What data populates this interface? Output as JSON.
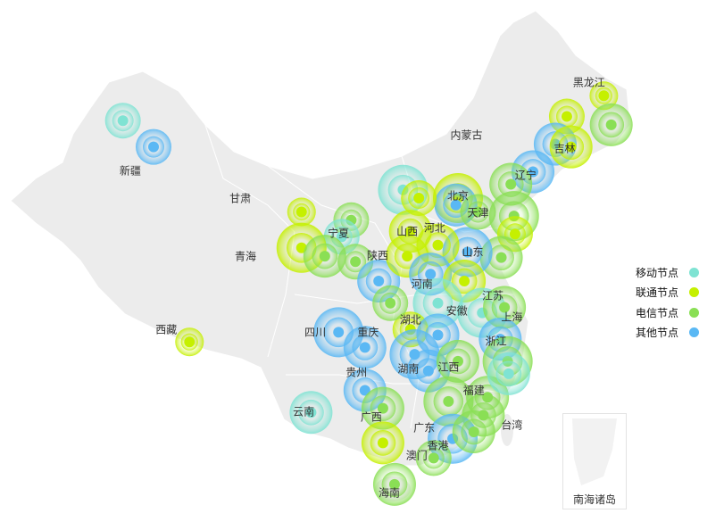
{
  "legend": [
    {
      "label": "移动节点",
      "type": "mobile",
      "color": "#7fe3d3"
    },
    {
      "label": "联通节点",
      "type": "unicom",
      "color": "#c5f000"
    },
    {
      "label": "电信节点",
      "type": "telecom",
      "color": "#8adf55"
    },
    {
      "label": "其他节点",
      "type": "other",
      "color": "#5ab8f4"
    }
  ],
  "map": {
    "region_fill": "#ececec",
    "border_color": "#ffffff",
    "provinces": [
      {
        "name": "黑龙江",
        "lon": 128.8,
        "lat": 48.3
      },
      {
        "name": "吉林",
        "lon": 126.5,
        "lat": 43.5
      },
      {
        "name": "辽宁",
        "lon": 122.8,
        "lat": 41.6
      },
      {
        "name": "内蒙古",
        "lon": 117.2,
        "lat": 44.5
      },
      {
        "name": "新疆",
        "lon": 85.4,
        "lat": 41.9
      },
      {
        "name": "甘肃",
        "lon": 95.8,
        "lat": 39.9
      },
      {
        "name": "青海",
        "lon": 96.3,
        "lat": 35.7
      },
      {
        "name": "西藏",
        "lon": 88.8,
        "lat": 30.4
      },
      {
        "name": "宁夏",
        "lon": 105.1,
        "lat": 37.4
      },
      {
        "name": "陕西",
        "lon": 108.8,
        "lat": 35.8
      },
      {
        "name": "山西",
        "lon": 111.6,
        "lat": 37.5
      },
      {
        "name": "北京",
        "lon": 116.4,
        "lat": 40.1
      },
      {
        "name": "天津",
        "lon": 118.3,
        "lat": 38.9
      },
      {
        "name": "河北",
        "lon": 114.2,
        "lat": 37.8
      },
      {
        "name": "山东",
        "lon": 117.8,
        "lat": 36.0
      },
      {
        "name": "河南",
        "lon": 113.0,
        "lat": 33.7
      },
      {
        "name": "江苏",
        "lon": 119.7,
        "lat": 32.9
      },
      {
        "name": "安徽",
        "lon": 116.3,
        "lat": 31.8
      },
      {
        "name": "上海",
        "lon": 121.5,
        "lat": 31.3
      },
      {
        "name": "浙江",
        "lon": 120.0,
        "lat": 29.6
      },
      {
        "name": "湖北",
        "lon": 111.9,
        "lat": 31.1
      },
      {
        "name": "重庆",
        "lon": 107.9,
        "lat": 30.2
      },
      {
        "name": "四川",
        "lon": 102.9,
        "lat": 30.2
      },
      {
        "name": "贵州",
        "lon": 106.8,
        "lat": 27.3
      },
      {
        "name": "湖南",
        "lon": 111.7,
        "lat": 27.6
      },
      {
        "name": "江西",
        "lon": 115.5,
        "lat": 27.7
      },
      {
        "name": "福建",
        "lon": 117.9,
        "lat": 26.0
      },
      {
        "name": "云南",
        "lon": 101.8,
        "lat": 24.5
      },
      {
        "name": "广西",
        "lon": 108.2,
        "lat": 24.1
      },
      {
        "name": "广东",
        "lon": 113.2,
        "lat": 23.3
      },
      {
        "name": "香港",
        "lon": 114.5,
        "lat": 22.0
      },
      {
        "name": "澳门",
        "lon": 112.5,
        "lat": 21.3
      },
      {
        "name": "海南",
        "lon": 109.9,
        "lat": 18.6
      },
      {
        "name": "台湾",
        "lon": 121.5,
        "lat": 23.5
      }
    ],
    "inset_label": "南海诸岛"
  },
  "points": [
    {
      "lon": 84.7,
      "lat": 45.5,
      "type": "mobile",
      "value": 3
    },
    {
      "lon": 87.6,
      "lat": 43.6,
      "type": "other",
      "value": 3
    },
    {
      "lon": 130.2,
      "lat": 47.3,
      "type": "unicom",
      "value": 2
    },
    {
      "lon": 130.9,
      "lat": 45.2,
      "type": "telecom",
      "value": 4
    },
    {
      "lon": 126.7,
      "lat": 45.8,
      "type": "unicom",
      "value": 3
    },
    {
      "lon": 125.6,
      "lat": 43.8,
      "type": "other",
      "value": 4
    },
    {
      "lon": 127.1,
      "lat": 43.6,
      "type": "unicom",
      "value": 4
    },
    {
      "lon": 123.5,
      "lat": 41.8,
      "type": "other",
      "value": 4
    },
    {
      "lon": 121.4,
      "lat": 40.9,
      "type": "telecom",
      "value": 4
    },
    {
      "lon": 121.7,
      "lat": 38.6,
      "type": "telecom",
      "value": 5
    },
    {
      "lon": 121.8,
      "lat": 37.3,
      "type": "unicom",
      "value": 3
    },
    {
      "lon": 120.5,
      "lat": 35.6,
      "type": "telecom",
      "value": 4
    },
    {
      "lon": 117.3,
      "lat": 36.0,
      "type": "other",
      "value": 5
    },
    {
      "lon": 116.4,
      "lat": 39.9,
      "type": "unicom",
      "value": 5
    },
    {
      "lon": 116.2,
      "lat": 39.4,
      "type": "other",
      "value": 4
    },
    {
      "lon": 118.3,
      "lat": 38.9,
      "type": "telecom",
      "value": 3
    },
    {
      "lon": 111.2,
      "lat": 40.5,
      "type": "mobile",
      "value": 5
    },
    {
      "lon": 112.7,
      "lat": 39.9,
      "type": "unicom",
      "value": 3
    },
    {
      "lon": 111.9,
      "lat": 37.5,
      "type": "unicom",
      "value": 4
    },
    {
      "lon": 114.5,
      "lat": 36.5,
      "type": "unicom",
      "value": 4
    },
    {
      "lon": 101.6,
      "lat": 38.9,
      "type": "unicom",
      "value": 2
    },
    {
      "lon": 106.3,
      "lat": 38.3,
      "type": "telecom",
      "value": 3
    },
    {
      "lon": 105.4,
      "lat": 37.1,
      "type": "mobile",
      "value": 3
    },
    {
      "lon": 101.6,
      "lat": 36.3,
      "type": "unicom",
      "value": 5
    },
    {
      "lon": 103.8,
      "lat": 35.7,
      "type": "telecom",
      "value": 4
    },
    {
      "lon": 106.7,
      "lat": 35.3,
      "type": "telecom",
      "value": 3
    },
    {
      "lon": 108.9,
      "lat": 33.9,
      "type": "other",
      "value": 4
    },
    {
      "lon": 111.6,
      "lat": 35.7,
      "type": "unicom",
      "value": 4
    },
    {
      "lon": 113.8,
      "lat": 34.4,
      "type": "other",
      "value": 4
    },
    {
      "lon": 117.0,
      "lat": 33.9,
      "type": "unicom",
      "value": 4
    },
    {
      "lon": 114.5,
      "lat": 32.3,
      "type": "mobile",
      "value": 5
    },
    {
      "lon": 118.7,
      "lat": 31.6,
      "type": "mobile",
      "value": 5
    },
    {
      "lon": 120.8,
      "lat": 32.0,
      "type": "telecom",
      "value": 4
    },
    {
      "lon": 120.4,
      "lat": 29.7,
      "type": "other",
      "value": 4
    },
    {
      "lon": 121.1,
      "lat": 28.1,
      "type": "telecom",
      "value": 5
    },
    {
      "lon": 111.9,
      "lat": 30.4,
      "type": "unicom",
      "value": 3
    },
    {
      "lon": 114.5,
      "lat": 30.0,
      "type": "other",
      "value": 4
    },
    {
      "lon": 112.3,
      "lat": 28.6,
      "type": "other",
      "value": 5
    },
    {
      "lon": 113.6,
      "lat": 27.4,
      "type": "other",
      "value": 4
    },
    {
      "lon": 116.4,
      "lat": 28.1,
      "type": "telecom",
      "value": 4
    },
    {
      "lon": 115.5,
      "lat": 25.2,
      "type": "telecom",
      "value": 5
    },
    {
      "lon": 119.2,
      "lat": 25.5,
      "type": "telecom",
      "value": 4
    },
    {
      "lon": 118.8,
      "lat": 24.2,
      "type": "telecom",
      "value": 4
    },
    {
      "lon": 105.1,
      "lat": 30.2,
      "type": "other",
      "value": 5
    },
    {
      "lon": 107.6,
      "lat": 29.1,
      "type": "other",
      "value": 4
    },
    {
      "lon": 110.0,
      "lat": 32.3,
      "type": "telecom",
      "value": 3
    },
    {
      "lon": 107.6,
      "lat": 26.0,
      "type": "other",
      "value": 4
    },
    {
      "lon": 109.3,
      "lat": 24.7,
      "type": "telecom",
      "value": 4
    },
    {
      "lon": 102.5,
      "lat": 24.4,
      "type": "mobile",
      "value": 4
    },
    {
      "lon": 109.3,
      "lat": 22.2,
      "type": "unicom",
      "value": 4
    },
    {
      "lon": 115.9,
      "lat": 22.5,
      "type": "other",
      "value": 5
    },
    {
      "lon": 114.1,
      "lat": 21.1,
      "type": "telecom",
      "value": 3
    },
    {
      "lon": 117.9,
      "lat": 23.0,
      "type": "telecom",
      "value": 4
    },
    {
      "lon": 110.4,
      "lat": 19.2,
      "type": "telecom",
      "value": 4
    },
    {
      "lon": 91.0,
      "lat": 29.5,
      "type": "unicom",
      "value": 2
    },
    {
      "lon": 121.2,
      "lat": 27.2,
      "type": "mobile",
      "value": 4
    }
  ]
}
